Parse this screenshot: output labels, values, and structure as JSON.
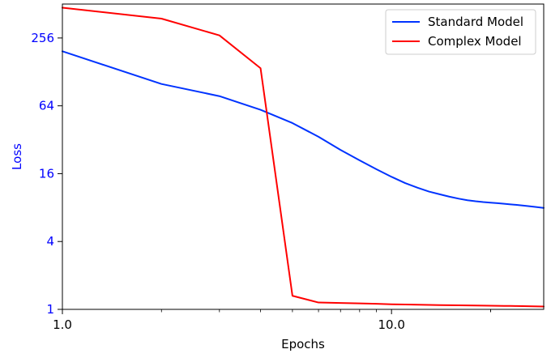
{
  "chart_data": {
    "type": "line",
    "xlabel": "Epochs",
    "ylabel": "Loss",
    "x_scale": "log",
    "y_scale": "log2",
    "xlim": [
      1.0,
      29
    ],
    "ylim": [
      1,
      512
    ],
    "x_ticks": [
      1.0,
      10.0
    ],
    "x_tick_labels": [
      "1.0",
      "10.0"
    ],
    "y_ticks": [
      1,
      4,
      16,
      64,
      256
    ],
    "y_tick_labels": [
      "1",
      "4",
      "16",
      "64",
      "256"
    ],
    "grid": false,
    "legend_position": "top-right",
    "colors": {
      "ylabel": "#0000ff",
      "yticks": "#0000ff",
      "axis": "#000000"
    },
    "series": [
      {
        "name": "Standard Model",
        "color": "#0033ff",
        "x": [
          1,
          2,
          3,
          4,
          5,
          6,
          7,
          8,
          9,
          10,
          11,
          12,
          13,
          14,
          15,
          16,
          17,
          18,
          19,
          20,
          21,
          22,
          23,
          24,
          25,
          26,
          27,
          28,
          29
        ],
        "y": [
          195,
          100,
          78,
          59,
          45,
          34,
          26,
          21,
          17.5,
          15,
          13.2,
          12,
          11.1,
          10.5,
          10,
          9.6,
          9.3,
          9.1,
          8.95,
          8.85,
          8.75,
          8.65,
          8.55,
          8.45,
          8.35,
          8.25,
          8.15,
          8.05,
          7.95
        ]
      },
      {
        "name": "Complex Model",
        "color": "#ff0000",
        "x": [
          1,
          2,
          3,
          4,
          5,
          6,
          7,
          8,
          9,
          10,
          11,
          12,
          13,
          14,
          15,
          16,
          17,
          18,
          19,
          20,
          21,
          22,
          23,
          24,
          25,
          26,
          27,
          28,
          29
        ],
        "y": [
          475,
          380,
          270,
          138,
          1.32,
          1.15,
          1.14,
          1.13,
          1.12,
          1.11,
          1.105,
          1.1,
          1.095,
          1.09,
          1.088,
          1.086,
          1.084,
          1.082,
          1.08,
          1.078,
          1.076,
          1.074,
          1.072,
          1.07,
          1.068,
          1.066,
          1.064,
          1.062,
          1.06
        ]
      }
    ]
  }
}
